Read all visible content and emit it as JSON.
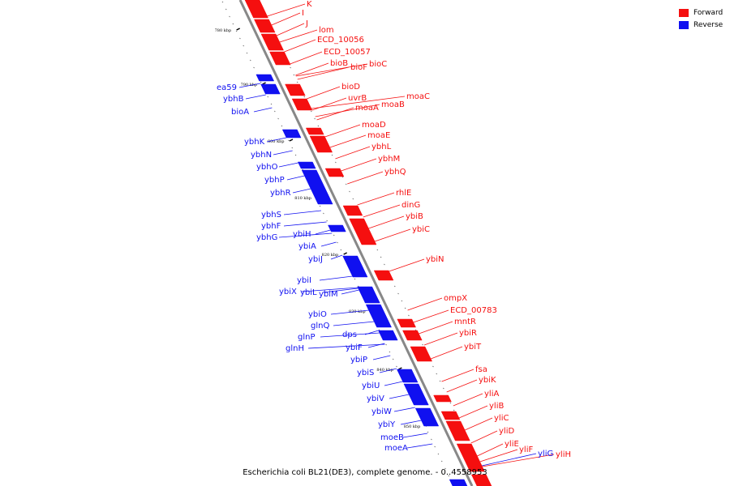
{
  "colors": {
    "forward": "#f50f0f",
    "reverse": "#1010f0",
    "backbone": "#888888"
  },
  "legend": [
    {
      "label": "Forward",
      "color": "#f50f0f"
    },
    {
      "label": "Reverse",
      "color": "#1010f0"
    }
  ],
  "caption": "Escherichia coli BL21(DE3), complete genome. - 0..4558953",
  "ticks": [
    "780 kbp",
    "790 kbp",
    "800 kbp",
    "810 kbp",
    "820 kbp",
    "830 kbp",
    "840 kbp",
    "850 kbp"
  ],
  "forward_genes": [
    "K",
    "I",
    "J",
    "lom",
    "ECD_10056",
    "ECD_10057",
    "bioB",
    "bioF",
    "bioC",
    "bioD",
    "uvrB",
    "moaA",
    "moaB",
    "moaC",
    "moaD",
    "moaE",
    "ybhL",
    "ybhM",
    "ybhQ",
    "rhlE",
    "dinG",
    "ybiB",
    "ybiC",
    "ybiN",
    "ompX",
    "ECD_00783",
    "mntR",
    "ybiR",
    "ybiT",
    "fsa",
    "ybiK",
    "yliA",
    "yliB",
    "yliC",
    "yliD",
    "yliE",
    "yliF",
    "yliH"
  ],
  "reverse_genes": [
    "ea59",
    "ybhB",
    "bioA",
    "ybhK",
    "ybhN",
    "ybhO",
    "ybhP",
    "ybhR",
    "ybhS",
    "ybhF",
    "ybhG",
    "ybiH",
    "ybiA",
    "ybiJ",
    "ybiI",
    "ybiX",
    "ybiL",
    "ybiM",
    "ybiO",
    "glnQ",
    "glnP",
    "glnH",
    "dps",
    "ybiF",
    "ybiP",
    "ybiS",
    "ybiU",
    "ybiV",
    "ybiW",
    "ybiY",
    "moeB",
    "moeA",
    "yliG"
  ]
}
